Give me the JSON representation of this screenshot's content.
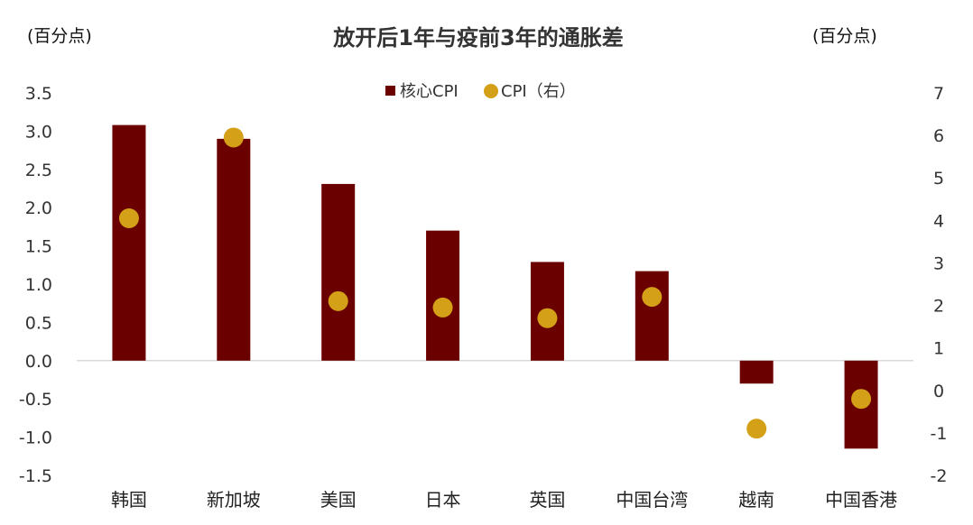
{
  "chart_data": {
    "type": "bar",
    "title": "放开后1年与疫前3年的通胀差",
    "left_axis_unit": "(百分点)",
    "right_axis_unit": "(百分点)",
    "categories": [
      "韩国",
      "新加坡",
      "美国",
      "日本",
      "英国",
      "中国台湾",
      "越南",
      "中国香港"
    ],
    "series": [
      {
        "name": "核心CPI",
        "type": "bar",
        "axis": "left",
        "color": "#6b0000",
        "values": [
          3.08,
          2.9,
          2.31,
          1.7,
          1.29,
          1.17,
          -0.3,
          -1.15
        ]
      },
      {
        "name": "CPI（右）",
        "type": "scatter",
        "axis": "right",
        "color": "#d4a017",
        "values": [
          4.05,
          5.95,
          2.1,
          1.95,
          1.7,
          2.2,
          -0.9,
          -0.2
        ]
      }
    ],
    "left_axis": {
      "ylim": [
        -1.5,
        3.5
      ],
      "ticks": [
        "3.5",
        "3.0",
        "2.5",
        "2.0",
        "1.5",
        "1.0",
        "0.5",
        "0.0",
        "-0.5",
        "-1.0",
        "-1.5"
      ],
      "tick_values": [
        3.5,
        3.0,
        2.5,
        2.0,
        1.5,
        1.0,
        0.5,
        0.0,
        -0.5,
        -1.0,
        -1.5
      ]
    },
    "right_axis": {
      "ylim": [
        -2,
        7
      ],
      "ticks": [
        "7",
        "6",
        "5",
        "4",
        "3",
        "2",
        "1",
        "0",
        "-1",
        "-2"
      ],
      "tick_values": [
        7,
        6,
        5,
        4,
        3,
        2,
        1,
        0,
        -1,
        -2
      ]
    },
    "legend_position": "top-center",
    "grid": false
  }
}
